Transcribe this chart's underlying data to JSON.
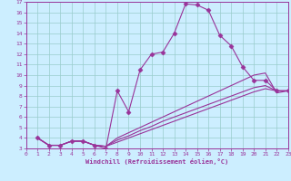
{
  "xlabel": "Windchill (Refroidissement éolien,°C)",
  "bg_color": "#cceeff",
  "line_color": "#993399",
  "grid_color": "#99cccc",
  "xlim": [
    0,
    23
  ],
  "ylim": [
    3,
    17
  ],
  "xticks": [
    0,
    1,
    2,
    3,
    4,
    5,
    6,
    7,
    8,
    9,
    10,
    11,
    12,
    13,
    14,
    15,
    16,
    17,
    18,
    19,
    20,
    21,
    22,
    23
  ],
  "yticks": [
    3,
    4,
    5,
    6,
    7,
    8,
    9,
    10,
    11,
    12,
    13,
    14,
    15,
    16,
    17
  ],
  "lines": [
    {
      "x": [
        1,
        2,
        3,
        4,
        5,
        6,
        7,
        8,
        9,
        10,
        11,
        12,
        13,
        14,
        15,
        16,
        17,
        18,
        19,
        20,
        21,
        22,
        23
      ],
      "y": [
        4.0,
        3.3,
        3.3,
        3.7,
        3.7,
        3.3,
        3.0,
        8.5,
        6.5,
        10.5,
        12.0,
        12.2,
        14.0,
        16.8,
        16.7,
        16.2,
        13.8,
        12.8,
        10.8,
        9.5,
        9.5,
        8.5,
        8.5
      ],
      "marker": "D",
      "markersize": 2.5
    },
    {
      "x": [
        1,
        2,
        3,
        4,
        5,
        6,
        7,
        8,
        9,
        10,
        11,
        12,
        13,
        14,
        15,
        16,
        17,
        18,
        19,
        20,
        21,
        22,
        23
      ],
      "y": [
        4.0,
        3.3,
        3.3,
        3.7,
        3.7,
        3.3,
        3.2,
        4.0,
        4.5,
        5.0,
        5.5,
        6.0,
        6.5,
        7.0,
        7.5,
        8.0,
        8.5,
        9.0,
        9.5,
        10.0,
        10.2,
        8.3,
        8.5
      ],
      "marker": null,
      "markersize": 0
    },
    {
      "x": [
        1,
        2,
        3,
        4,
        5,
        6,
        7,
        8,
        9,
        10,
        11,
        12,
        13,
        14,
        15,
        16,
        17,
        18,
        19,
        20,
        21,
        22,
        23
      ],
      "y": [
        4.0,
        3.3,
        3.3,
        3.7,
        3.7,
        3.3,
        3.2,
        3.8,
        4.2,
        4.7,
        5.1,
        5.6,
        6.0,
        6.4,
        6.8,
        7.2,
        7.6,
        8.0,
        8.4,
        8.8,
        9.0,
        8.5,
        8.5
      ],
      "marker": null,
      "markersize": 0
    },
    {
      "x": [
        1,
        2,
        3,
        4,
        5,
        6,
        7,
        8,
        9,
        10,
        11,
        12,
        13,
        14,
        15,
        16,
        17,
        18,
        19,
        20,
        21,
        22,
        23
      ],
      "y": [
        4.0,
        3.3,
        3.3,
        3.7,
        3.7,
        3.3,
        3.2,
        3.6,
        4.0,
        4.4,
        4.8,
        5.2,
        5.6,
        6.0,
        6.4,
        6.8,
        7.2,
        7.6,
        8.0,
        8.4,
        8.7,
        8.5,
        8.5
      ],
      "marker": null,
      "markersize": 0
    }
  ]
}
